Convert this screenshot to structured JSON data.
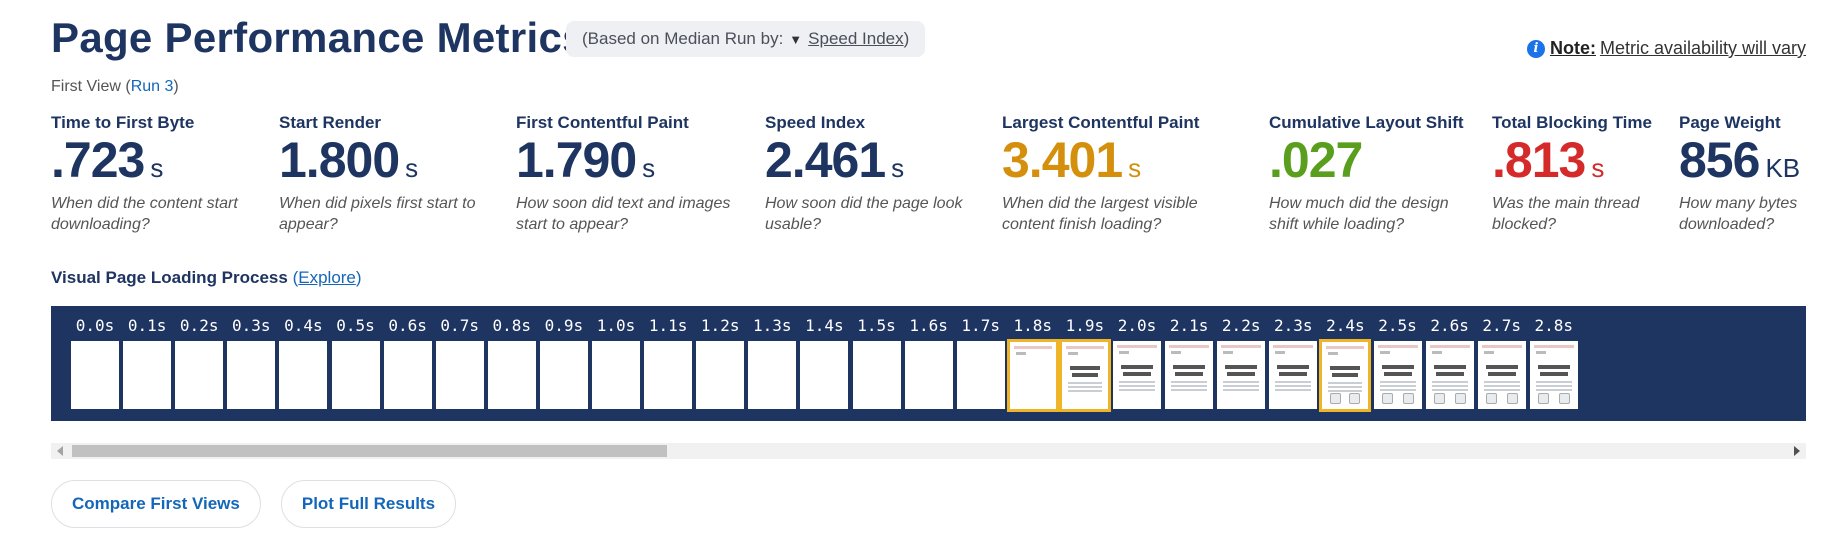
{
  "header": {
    "title": "Page Performance Metrics",
    "median_prefix": "(Based on Median Run by:",
    "median_metric": "Speed Index",
    "median_suffix": ")",
    "note_label": "Note:",
    "note_text": "Metric availability will vary"
  },
  "first_view": {
    "label": "First View (",
    "run_link": "Run 3",
    "suffix": ")"
  },
  "metrics": [
    {
      "label": "Time to First Byte",
      "value": ".723",
      "unit": "s",
      "desc1": "When did the content start",
      "desc2": "downloading?",
      "color": "#1e3461"
    },
    {
      "label": "Start Render",
      "value": "1.800",
      "unit": "s",
      "desc1": "When did pixels first start to",
      "desc2": "appear?",
      "color": "#1e3461"
    },
    {
      "label": "First Contentful Paint",
      "value": "1.790",
      "unit": "s",
      "desc1": "How soon did text and images",
      "desc2": "start to appear?",
      "color": "#1e3461"
    },
    {
      "label": "Speed Index",
      "value": "2.461",
      "unit": "s",
      "desc1": "How soon did the page look",
      "desc2": "usable?",
      "color": "#1e3461"
    },
    {
      "label": "Largest Contentful Paint",
      "value": "3.401",
      "unit": "s",
      "desc1": "When did the largest visible",
      "desc2": "content finish loading?",
      "color": "#d4900c"
    },
    {
      "label": "Cumulative Layout Shift",
      "value": ".027",
      "unit": "",
      "desc1": "How much did the design",
      "desc2": "shift while loading?",
      "color": "#5a9e1e"
    },
    {
      "label": "Total Blocking Time",
      "value": ".813",
      "unit": "s",
      "desc1": "Was the main thread",
      "desc2": "blocked?",
      "color": "#d42a2a"
    },
    {
      "label": "Page Weight",
      "value": "856",
      "unit": "KB",
      "desc1": "How many bytes",
      "desc2": "downloaded?",
      "color": "#1e3461"
    }
  ],
  "visual_progress": {
    "label": "Visual Page Loading Process",
    "explore_link": "Explore",
    "frames": [
      {
        "time": "0.0s",
        "state": "blank"
      },
      {
        "time": "0.1s",
        "state": "blank"
      },
      {
        "time": "0.2s",
        "state": "blank"
      },
      {
        "time": "0.3s",
        "state": "blank"
      },
      {
        "time": "0.4s",
        "state": "blank"
      },
      {
        "time": "0.5s",
        "state": "blank"
      },
      {
        "time": "0.6s",
        "state": "blank"
      },
      {
        "time": "0.7s",
        "state": "blank"
      },
      {
        "time": "0.8s",
        "state": "blank"
      },
      {
        "time": "0.9s",
        "state": "blank"
      },
      {
        "time": "1.0s",
        "state": "blank"
      },
      {
        "time": "1.1s",
        "state": "blank"
      },
      {
        "time": "1.2s",
        "state": "blank"
      },
      {
        "time": "1.3s",
        "state": "blank"
      },
      {
        "time": "1.4s",
        "state": "blank"
      },
      {
        "time": "1.5s",
        "state": "blank"
      },
      {
        "time": "1.6s",
        "state": "blank"
      },
      {
        "time": "1.7s",
        "state": "blank"
      },
      {
        "time": "1.8s",
        "state": "partial",
        "highlighted": true
      },
      {
        "time": "1.9s",
        "state": "content",
        "highlighted": true
      },
      {
        "time": "2.0s",
        "state": "content"
      },
      {
        "time": "2.1s",
        "state": "content"
      },
      {
        "time": "2.2s",
        "state": "content"
      },
      {
        "time": "2.3s",
        "state": "content"
      },
      {
        "time": "2.4s",
        "state": "content",
        "highlighted": true
      },
      {
        "time": "2.5s",
        "state": "content"
      },
      {
        "time": "2.6s",
        "state": "content"
      },
      {
        "time": "2.7s",
        "state": "content"
      },
      {
        "time": "2.8s",
        "state": "content"
      }
    ]
  },
  "actions": {
    "compare": "Compare First Views",
    "plot": "Plot Full Results"
  },
  "colors": {
    "navy": "#1e3461",
    "link": "#1466b8",
    "highlight": "#f0b429"
  }
}
